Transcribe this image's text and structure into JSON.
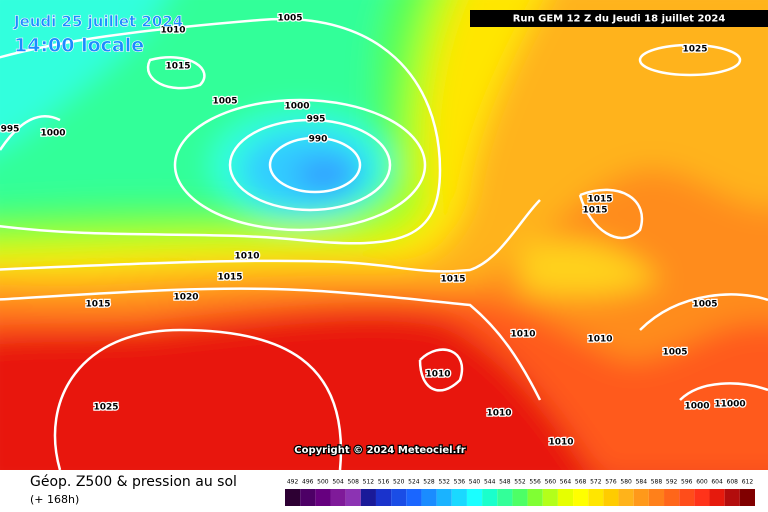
{
  "header": {
    "date": "Jeudi 25 juillet 2024",
    "time": "14:00 locale",
    "run": "Run GEM 12 Z du Jeudi 18 juillet 2024"
  },
  "copyright": "Copyright © 2024 Meteociel.fr",
  "footer": {
    "title": "Géop. Z500 & pression au sol",
    "lead": "(+ 168h)"
  },
  "isobar_labels": [
    "1005",
    "1010",
    "1015",
    "1005",
    "1000",
    "995",
    "990",
    "995",
    "1000",
    "1025",
    "1015",
    "1015",
    "1010",
    "1015",
    "1015",
    "1015",
    "1020",
    "1010",
    "1010",
    "1005",
    "1005",
    "1010",
    "1025",
    "1010",
    "1000",
    "11000",
    "1010"
  ],
  "scale": {
    "labels": [
      492,
      496,
      500,
      504,
      508,
      512,
      516,
      520,
      524,
      528,
      532,
      536,
      540,
      544,
      548,
      552,
      556,
      560,
      564,
      568,
      572,
      576,
      580,
      584,
      588,
      592,
      596,
      600,
      604,
      608,
      612
    ],
    "colors": [
      "#2d0033",
      "#4d0066",
      "#66007f",
      "#7f1a99",
      "#8c33b3",
      "#1a1a99",
      "#1a33cc",
      "#1a4de6",
      "#1a66ff",
      "#1a8cff",
      "#1ab3ff",
      "#1ad9ff",
      "#1affff",
      "#1affcc",
      "#33ff99",
      "#4dff66",
      "#80ff33",
      "#b3ff1a",
      "#e6ff00",
      "#ffff00",
      "#ffe600",
      "#ffcc00",
      "#ffb31a",
      "#ff991a",
      "#ff801a",
      "#ff661a",
      "#ff4d1a",
      "#ff331a",
      "#e61a0d",
      "#b30d0d",
      "#800000"
    ]
  }
}
